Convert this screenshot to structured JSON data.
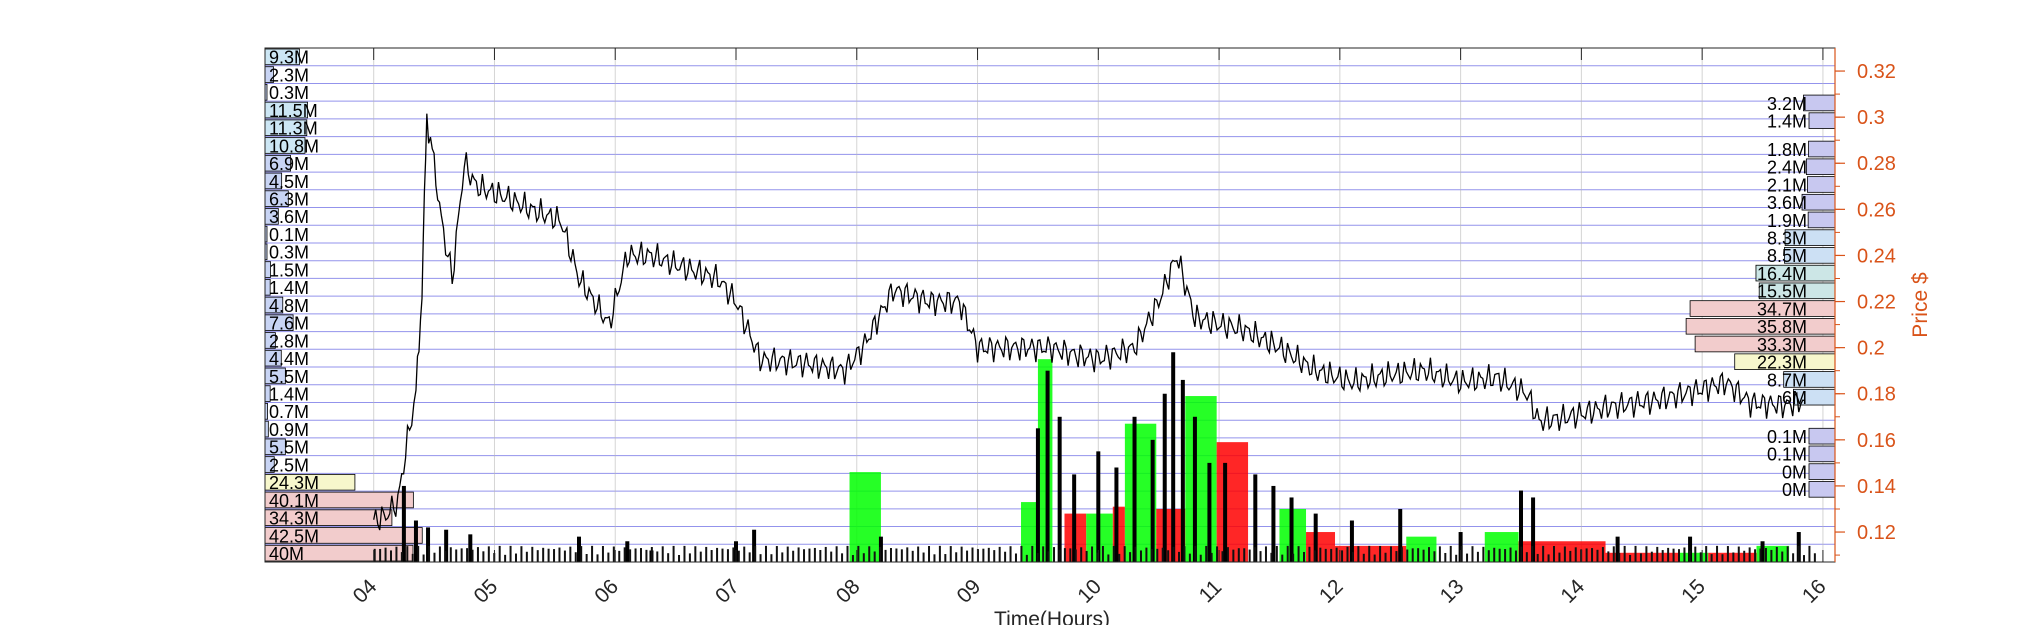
{
  "chart_data": {
    "type": "line",
    "title": "",
    "xlabel": "Time(Hours)",
    "ylabel": "Price $",
    "x_ticks": [
      "04",
      "05",
      "06",
      "07",
      "08",
      "09",
      "10",
      "11",
      "12",
      "13",
      "14",
      "15",
      "16"
    ],
    "y_ticks": [
      0.12,
      0.14,
      0.16,
      0.18,
      0.2,
      0.22,
      0.24,
      0.26,
      0.28,
      0.3,
      0.32
    ],
    "xlim": [
      3.1,
      16.1
    ],
    "ylim": [
      0.107,
      0.33
    ],
    "grid": true,
    "colors": {
      "price_line": "#000000",
      "grid": "#3b3bdd",
      "right_axis": "#d95319",
      "volume_up": "#00ff00",
      "volume_down": "#ff0000",
      "volume_neutral": "#000000"
    },
    "series": [
      {
        "values": [
          {
            "x": 4.0,
            "y": 0.125
          },
          {
            "x": 4.1,
            "y": 0.127
          },
          {
            "x": 4.2,
            "y": 0.133
          },
          {
            "x": 4.28,
            "y": 0.16
          },
          {
            "x": 4.35,
            "y": 0.18
          },
          {
            "x": 4.4,
            "y": 0.225
          },
          {
            "x": 4.44,
            "y": 0.3
          },
          {
            "x": 4.5,
            "y": 0.28
          },
          {
            "x": 4.56,
            "y": 0.255
          },
          {
            "x": 4.65,
            "y": 0.23
          },
          {
            "x": 4.75,
            "y": 0.28
          },
          {
            "x": 4.85,
            "y": 0.27
          },
          {
            "x": 4.95,
            "y": 0.268
          },
          {
            "x": 5.1,
            "y": 0.265
          },
          {
            "x": 5.3,
            "y": 0.26
          },
          {
            "x": 5.55,
            "y": 0.255
          },
          {
            "x": 5.7,
            "y": 0.23
          },
          {
            "x": 5.95,
            "y": 0.21
          },
          {
            "x": 6.1,
            "y": 0.24
          },
          {
            "x": 6.3,
            "y": 0.24
          },
          {
            "x": 6.55,
            "y": 0.235
          },
          {
            "x": 6.85,
            "y": 0.23
          },
          {
            "x": 7.0,
            "y": 0.22
          },
          {
            "x": 7.2,
            "y": 0.195
          },
          {
            "x": 7.6,
            "y": 0.193
          },
          {
            "x": 7.9,
            "y": 0.19
          },
          {
            "x": 8.05,
            "y": 0.2
          },
          {
            "x": 8.3,
            "y": 0.225
          },
          {
            "x": 8.6,
            "y": 0.22
          },
          {
            "x": 8.85,
            "y": 0.22
          },
          {
            "x": 9.0,
            "y": 0.2
          },
          {
            "x": 9.3,
            "y": 0.2
          },
          {
            "x": 9.6,
            "y": 0.2
          },
          {
            "x": 9.8,
            "y": 0.197
          },
          {
            "x": 10.0,
            "y": 0.195
          },
          {
            "x": 10.3,
            "y": 0.2
          },
          {
            "x": 10.5,
            "y": 0.22
          },
          {
            "x": 10.65,
            "y": 0.24
          },
          {
            "x": 10.8,
            "y": 0.213
          },
          {
            "x": 11.0,
            "y": 0.21
          },
          {
            "x": 11.2,
            "y": 0.208
          },
          {
            "x": 11.5,
            "y": 0.2
          },
          {
            "x": 11.8,
            "y": 0.19
          },
          {
            "x": 12.1,
            "y": 0.185
          },
          {
            "x": 12.4,
            "y": 0.188
          },
          {
            "x": 12.7,
            "y": 0.19
          },
          {
            "x": 13.0,
            "y": 0.185
          },
          {
            "x": 13.3,
            "y": 0.187
          },
          {
            "x": 13.55,
            "y": 0.18
          },
          {
            "x": 13.65,
            "y": 0.168
          },
          {
            "x": 13.9,
            "y": 0.17
          },
          {
            "x": 14.2,
            "y": 0.174
          },
          {
            "x": 14.6,
            "y": 0.177
          },
          {
            "x": 15.0,
            "y": 0.182
          },
          {
            "x": 15.2,
            "y": 0.185
          },
          {
            "x": 15.4,
            "y": 0.176
          },
          {
            "x": 15.7,
            "y": 0.175
          },
          {
            "x": 15.85,
            "y": 0.177
          }
        ]
      }
    ],
    "volume_bars": [
      {
        "x0": 7.94,
        "x1": 8.2,
        "top": 0.146,
        "color": "up"
      },
      {
        "x0": 9.36,
        "x1": 9.5,
        "top": 0.133,
        "color": "up"
      },
      {
        "x0": 9.5,
        "x1": 9.62,
        "top": 0.195,
        "color": "up"
      },
      {
        "x0": 9.72,
        "x1": 9.9,
        "top": 0.128,
        "color": "down"
      },
      {
        "x0": 9.9,
        "x1": 10.12,
        "top": 0.128,
        "color": "up"
      },
      {
        "x0": 10.12,
        "x1": 10.22,
        "top": 0.131,
        "color": "down"
      },
      {
        "x0": 10.22,
        "x1": 10.48,
        "top": 0.167,
        "color": "up"
      },
      {
        "x0": 10.48,
        "x1": 10.72,
        "top": 0.13,
        "color": "down"
      },
      {
        "x0": 10.72,
        "x1": 10.98,
        "top": 0.179,
        "color": "up"
      },
      {
        "x0": 10.98,
        "x1": 11.24,
        "top": 0.159,
        "color": "down"
      },
      {
        "x0": 11.5,
        "x1": 11.72,
        "top": 0.13,
        "color": "up"
      },
      {
        "x0": 11.72,
        "x1": 11.96,
        "top": 0.12,
        "color": "down"
      },
      {
        "x0": 11.96,
        "x1": 12.55,
        "top": 0.114,
        "color": "down"
      },
      {
        "x0": 12.55,
        "x1": 12.8,
        "top": 0.118,
        "color": "up"
      },
      {
        "x0": 13.2,
        "x1": 13.48,
        "top": 0.12,
        "color": "up"
      },
      {
        "x0": 13.48,
        "x1": 14.2,
        "top": 0.116,
        "color": "down"
      },
      {
        "x0": 14.2,
        "x1": 14.8,
        "top": 0.111,
        "color": "down"
      },
      {
        "x0": 14.8,
        "x1": 15.05,
        "top": 0.111,
        "color": "up"
      },
      {
        "x0": 15.05,
        "x1": 15.45,
        "top": 0.111,
        "color": "down"
      },
      {
        "x0": 15.45,
        "x1": 15.72,
        "top": 0.114,
        "color": "up"
      }
    ],
    "volume_spikes": [
      {
        "x": 4.25,
        "top": 0.14
      },
      {
        "x": 4.35,
        "top": 0.125
      },
      {
        "x": 4.45,
        "top": 0.122
      },
      {
        "x": 4.6,
        "top": 0.121
      },
      {
        "x": 4.8,
        "top": 0.119
      },
      {
        "x": 5.7,
        "top": 0.118
      },
      {
        "x": 6.1,
        "top": 0.116
      },
      {
        "x": 6.3,
        "top": 0.112
      },
      {
        "x": 7.0,
        "top": 0.116
      },
      {
        "x": 7.15,
        "top": 0.121
      },
      {
        "x": 8.2,
        "top": 0.118
      },
      {
        "x": 9.5,
        "top": 0.165
      },
      {
        "x": 9.58,
        "top": 0.19
      },
      {
        "x": 9.68,
        "top": 0.17
      },
      {
        "x": 9.8,
        "top": 0.145
      },
      {
        "x": 10.0,
        "top": 0.155
      },
      {
        "x": 10.15,
        "top": 0.148
      },
      {
        "x": 10.3,
        "top": 0.17
      },
      {
        "x": 10.45,
        "top": 0.16
      },
      {
        "x": 10.55,
        "top": 0.18
      },
      {
        "x": 10.62,
        "top": 0.198
      },
      {
        "x": 10.7,
        "top": 0.186
      },
      {
        "x": 10.8,
        "top": 0.17
      },
      {
        "x": 10.92,
        "top": 0.15
      },
      {
        "x": 11.05,
        "top": 0.15
      },
      {
        "x": 11.3,
        "top": 0.145
      },
      {
        "x": 11.45,
        "top": 0.14
      },
      {
        "x": 11.6,
        "top": 0.135
      },
      {
        "x": 11.8,
        "top": 0.128
      },
      {
        "x": 12.1,
        "top": 0.125
      },
      {
        "x": 12.5,
        "top": 0.13
      },
      {
        "x": 13.0,
        "top": 0.12
      },
      {
        "x": 13.5,
        "top": 0.138
      },
      {
        "x": 13.6,
        "top": 0.135
      },
      {
        "x": 14.3,
        "top": 0.118
      },
      {
        "x": 14.9,
        "top": 0.118
      },
      {
        "x": 15.5,
        "top": 0.116
      },
      {
        "x": 15.8,
        "top": 0.12
      }
    ],
    "left_volume_labels": [
      "9.3M",
      "2.3M",
      "0.3M",
      "11.5M",
      "11.3M",
      "10.8M",
      "6.9M",
      "4.5M",
      "6.3M",
      "3.6M",
      "0.1M",
      "0.3M",
      "1.5M",
      "1.4M",
      "4.8M",
      "7.6M",
      "2.8M",
      "4.4M",
      "5.5M",
      "1.4M",
      "0.7M",
      "0.9M",
      "5.5M",
      "2.5M",
      "24.3M",
      "40.1M",
      "34.3M",
      "42.5M",
      "40M"
    ],
    "right_volume_labels": [
      "3.2M",
      "1.4M",
      "1.8M",
      "2.4M",
      "2.1M",
      "3.6M",
      "1.9M",
      "8.3M",
      "8.5M",
      "16.4M",
      "15.5M",
      "34.7M",
      "35.8M",
      "33.3M",
      "22.3M",
      "8.7M",
      "6M",
      "0.1M",
      "0.1M",
      "0M",
      "0M"
    ]
  }
}
